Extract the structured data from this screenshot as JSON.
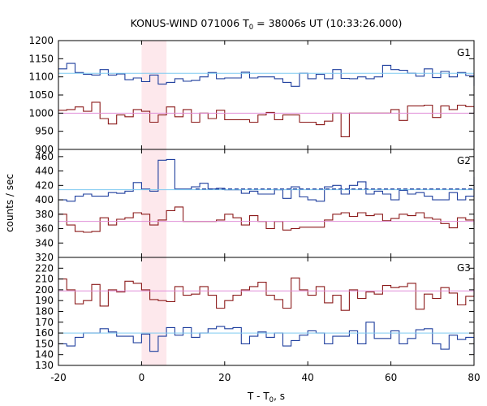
{
  "chart_data": {
    "type": "line",
    "title": {
      "prefix": "KONUS-WIND 071006 T",
      "sub": "0",
      "suffix": " = 38006s UT (10:33:26.000)"
    },
    "xlabel": {
      "prefix": "T - T",
      "sub": "0",
      "suffix": ", s"
    },
    "ylabel": "counts / sec",
    "xlim": [
      -20,
      80
    ],
    "xticks": [
      -20,
      0,
      20,
      40,
      60,
      80
    ],
    "highlight_interval": [
      0,
      6
    ],
    "colors": {
      "dark_blue": "#1f3f9e",
      "light_blue": "#7ecaf0",
      "dark_red": "#8b1a1a",
      "pink": "#e08ed8",
      "highlight": "#fde8ec"
    },
    "panels": [
      {
        "label": "G1",
        "ylim": [
          900,
          1200
        ],
        "yticks": [
          900,
          950,
          1000,
          1050,
          1100,
          1150,
          1200
        ],
        "bin_edges_start": -20,
        "bin_width": 2,
        "series": [
          {
            "name": "",
            "style": "step",
            "color": "dark_blue",
            "values": [
              1122,
              1137,
              1112,
              1107,
              1105,
              1120,
              1105,
              1108,
              1092,
              1097,
              1087,
              1105,
              1080,
              1085,
              1095,
              1088,
              1090,
              1100,
              1112,
              1095,
              1097,
              1097,
              1113,
              1097,
              1100,
              1100,
              1095,
              1085,
              1074,
              1110,
              1095,
              1107,
              1095,
              1120,
              1096,
              1095,
              1100,
              1095,
              1100,
              1132,
              1120,
              1118,
              1110,
              1102,
              1122,
              1098,
              1115,
              1100,
              1112,
              1104,
              1075
            ]
          },
          {
            "name": "",
            "style": "flat",
            "color": "light_blue",
            "level": 1110
          },
          {
            "name": "",
            "style": "step",
            "color": "dark_red",
            "values": [
              1008,
              1010,
              1017,
              1005,
              1030,
              985,
              970,
              995,
              990,
              1010,
              1005,
              975,
              995,
              1017,
              990,
              1010,
              975,
              1000,
              985,
              1008,
              982,
              982,
              982,
              975,
              995,
              1002,
              982,
              995,
              995,
              975,
              975,
              968,
              978,
              1000,
              935,
              1000,
              1000,
              1000,
              1000,
              1000,
              1010,
              980,
              1020,
              1020,
              1022,
              988,
              1020,
              1010,
              1022,
              1018,
              1000
            ]
          },
          {
            "name": "",
            "style": "flat",
            "color": "pink",
            "level": 1000
          }
        ]
      },
      {
        "label": "G2",
        "ylim": [
          320,
          470
        ],
        "yticks": [
          320,
          340,
          360,
          380,
          400,
          420,
          440,
          460
        ],
        "bin_edges_start": -20,
        "bin_width": 2,
        "series": [
          {
            "name": "",
            "style": "step",
            "color": "dark_blue",
            "values": [
              400,
              398,
              405,
              408,
              405,
              405,
              410,
              409,
              412,
              424,
              415,
              412,
              455,
              456,
              415,
              415,
              418,
              423,
              415,
              416,
              414,
              414,
              409,
              412,
              408,
              408,
              414,
              402,
              418,
              404,
              400,
              398,
              418,
              420,
              408,
              420,
              425,
              408,
              412,
              408,
              400,
              413,
              408,
              410,
              405,
              400,
              400,
              410,
              400,
              405,
              432
            ]
          },
          {
            "name": "",
            "style": "flat",
            "color": "light_blue",
            "level": 414
          },
          {
            "name": "",
            "style": "dashed",
            "color": "dark_blue",
            "x_start": 13,
            "level": 415
          },
          {
            "name": "",
            "style": "step",
            "color": "dark_red",
            "values": [
              380,
              365,
              356,
              355,
              356,
              375,
              365,
              373,
              375,
              382,
              380,
              365,
              372,
              385,
              390,
              370,
              370,
              370,
              370,
              372,
              380,
              375,
              365,
              378,
              370,
              360,
              370,
              358,
              360,
              362,
              362,
              362,
              372,
              380,
              382,
              377,
              382,
              378,
              380,
              371,
              374,
              380,
              378,
              382,
              375,
              373,
              367,
              361,
              375,
              372,
              365
            ]
          },
          {
            "name": "",
            "style": "flat",
            "color": "pink",
            "level": 370
          }
        ]
      },
      {
        "label": "G3",
        "ylim": [
          130,
          230
        ],
        "yticks": [
          130,
          140,
          150,
          160,
          170,
          180,
          190,
          200,
          210,
          220,
          230
        ],
        "bin_edges_start": -20,
        "bin_width": 2,
        "series": [
          {
            "name": "",
            "style": "step",
            "color": "dark_red",
            "values": [
              210,
              200,
              187,
              190,
              205,
              185,
              200,
              198,
              208,
              206,
              200,
              191,
              190,
              189,
              203,
              195,
              196,
              203,
              195,
              183,
              190,
              195,
              200,
              203,
              207,
              195,
              191,
              183,
              211,
              200,
              195,
              203,
              188,
              195,
              181,
              200,
              192,
              198,
              196,
              204,
              202,
              203,
              206,
              182,
              196,
              192,
              202,
              197,
              186,
              194,
              215
            ]
          },
          {
            "name": "",
            "style": "flat",
            "color": "pink",
            "level": 199
          },
          {
            "name": "",
            "style": "step",
            "color": "dark_blue",
            "values": [
              150,
              148,
              156,
              160,
              160,
              164,
              161,
              157,
              157,
              151,
              159,
              143,
              157,
              165,
              158,
              165,
              156,
              160,
              164,
              166,
              164,
              165,
              150,
              157,
              161,
              156,
              160,
              148,
              153,
              158,
              162,
              160,
              150,
              157,
              157,
              162,
              150,
              170,
              155,
              155,
              162,
              150,
              155,
              163,
              164,
              150,
              145,
              158,
              154,
              156,
              140
            ]
          },
          {
            "name": "",
            "style": "flat",
            "color": "light_blue",
            "level": 160
          }
        ]
      }
    ]
  }
}
